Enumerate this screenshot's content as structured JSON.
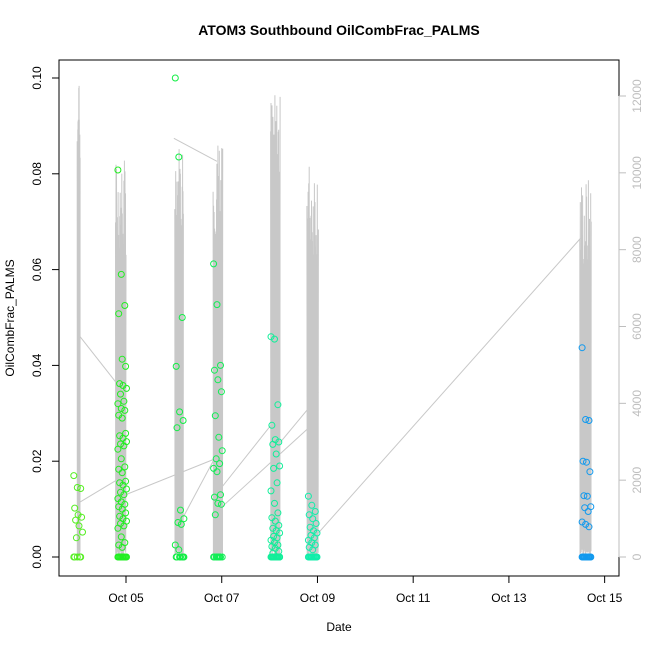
{
  "chart_data": {
    "type": "scatter",
    "title": "ATOM3 Southbound OilCombFrac_PALMS",
    "xlabel": "Date",
    "ylabel": "OilCombFrac_PALMS",
    "x_ticks": [
      "Oct 05",
      "Oct 07",
      "Oct 09",
      "Oct 11",
      "Oct 13",
      "Oct 15"
    ],
    "x_tick_days": [
      5,
      7,
      9,
      11,
      13,
      15
    ],
    "xlim_days": [
      3.6,
      15.3
    ],
    "ylim": [
      0,
      0.1
    ],
    "y_ticks": [
      "0.00",
      "0.02",
      "0.04",
      "0.06",
      "0.08",
      "0.10"
    ],
    "y_tick_values": [
      0,
      0.02,
      0.04,
      0.06,
      0.08,
      0.1
    ],
    "y2lim": [
      0,
      12000
    ],
    "y2_ticks": [
      "0",
      "2000",
      "4000",
      "6000",
      "8000",
      "10000",
      "12000"
    ],
    "y2_tick_values": [
      0,
      2000,
      4000,
      6000,
      8000,
      10000,
      12000
    ],
    "y2_color": "#bebebe",
    "point_style": "open-circle",
    "flights": [
      {
        "center": 4.0,
        "color": "#55ee22",
        "values": [
          0.017,
          0.0145,
          0.0143,
          0.0102,
          0.0088,
          0.0083,
          0.0077,
          0.0065,
          0.0052,
          0.004,
          0,
          0,
          0,
          0,
          0
        ]
      },
      {
        "center": 4.92,
        "color": "#22ee22",
        "values": [
          0.0808,
          0.059,
          0.0525,
          0.0508,
          0.0413,
          0.0398,
          0.0362,
          0.0358,
          0.0352,
          0.034,
          0.0325,
          0.032,
          0.031,
          0.0306,
          0.0296,
          0.029,
          0.0258,
          0.0253,
          0.0248,
          0.0241,
          0.0236,
          0.0232,
          0.0225,
          0.0205,
          0.0188,
          0.0183,
          0.0176,
          0.0158,
          0.0155,
          0.015,
          0.0142,
          0.0135,
          0.013,
          0.0122,
          0.0115,
          0.011,
          0.0105,
          0.01,
          0.0092,
          0.0085,
          0.008,
          0.0075,
          0.007,
          0.0065,
          0.006,
          0.0042,
          0.003,
          0.0025,
          0.002,
          0,
          0,
          0,
          0,
          0,
          0,
          0,
          0,
          0,
          0,
          0
        ]
      },
      {
        "center": 6.12,
        "color": "#11ee44",
        "values": [
          0.1,
          0.0835,
          0.05,
          0.0398,
          0.0303,
          0.0285,
          0.027,
          0.0098,
          0.008,
          0.0072,
          0.0068,
          0.0025,
          0.0015,
          0,
          0,
          0,
          0,
          0,
          0,
          0
        ]
      },
      {
        "center": 6.92,
        "color": "#11ee55",
        "values": [
          0.0612,
          0.0527,
          0.04,
          0.039,
          0.037,
          0.0345,
          0.0295,
          0.025,
          0.0222,
          0.0205,
          0.0195,
          0.0185,
          0.0178,
          0.013,
          0.0125,
          0.0112,
          0.011,
          0.0088,
          0,
          0,
          0,
          0,
          0,
          0,
          0,
          0,
          0
        ]
      },
      {
        "center": 8.12,
        "color": "#11ee99",
        "values": [
          0.046,
          0.0455,
          0.0318,
          0.0275,
          0.0245,
          0.024,
          0.0235,
          0.0215,
          0.019,
          0.0185,
          0.0155,
          0.0138,
          0.0112,
          0.0092,
          0.0082,
          0.0075,
          0.0066,
          0.006,
          0.0055,
          0.005,
          0.0043,
          0.004,
          0.0035,
          0.003,
          0.0025,
          0.0022,
          0.0018,
          0.0012,
          0.0008,
          0,
          0,
          0,
          0,
          0,
          0,
          0,
          0,
          0,
          0,
          0,
          0,
          0,
          0
        ]
      },
      {
        "center": 8.9,
        "color": "#11eeaa",
        "values": [
          0.0127,
          0.0108,
          0.0095,
          0.0088,
          0.008,
          0.007,
          0.0062,
          0.0055,
          0.005,
          0.0045,
          0.004,
          0.0035,
          0.003,
          0.0025,
          0.002,
          0.0015,
          0,
          0,
          0,
          0,
          0,
          0,
          0,
          0,
          0,
          0,
          0,
          0
        ]
      },
      {
        "center": 14.62,
        "color": "#1199ee",
        "values": [
          0.0437,
          0.0287,
          0.0285,
          0.02,
          0.0198,
          0.0178,
          0.0128,
          0.0127,
          0.0105,
          0.0103,
          0.0095,
          0.0073,
          0.0068,
          0.0063,
          0,
          0,
          0,
          0,
          0,
          0,
          0,
          0,
          0,
          0,
          0,
          0,
          0,
          0
        ]
      }
    ],
    "secondary_series": {
      "color": "#c8c8c8",
      "segments": [
        {
          "start": 3.98,
          "end": 4.04,
          "peak": 12400,
          "low": 0
        },
        {
          "start": 4.78,
          "end": 5.0,
          "peak": 10400,
          "low": 0
        },
        {
          "start": 6.02,
          "end": 6.2,
          "peak": 10900,
          "low": 0
        },
        {
          "start": 6.82,
          "end": 7.02,
          "peak": 10900,
          "low": 0
        },
        {
          "start": 8.02,
          "end": 8.22,
          "peak": 12100,
          "low": 0
        },
        {
          "start": 8.78,
          "end": 9.02,
          "peak": 10400,
          "low": 0
        },
        {
          "start": 14.48,
          "end": 14.72,
          "peak": 9900,
          "low": 0
        }
      ],
      "connectors": [
        [
          4.0,
          5800,
          4.82,
          4500
        ],
        [
          4.0,
          1400,
          4.8,
          2000
        ],
        [
          4.95,
          1600,
          6.95,
          2600
        ],
        [
          6.0,
          10900,
          6.9,
          10300
        ],
        [
          6.05,
          700,
          6.95,
          2800
        ],
        [
          6.8,
          1500,
          8.2,
          3700
        ],
        [
          7.0,
          1300,
          8.85,
          3400
        ],
        [
          8.1,
          2800,
          8.9,
          4000
        ],
        [
          9.0,
          600,
          14.5,
          8300
        ],
        [
          8.95,
          4200,
          9.02,
          4300
        ]
      ]
    }
  }
}
